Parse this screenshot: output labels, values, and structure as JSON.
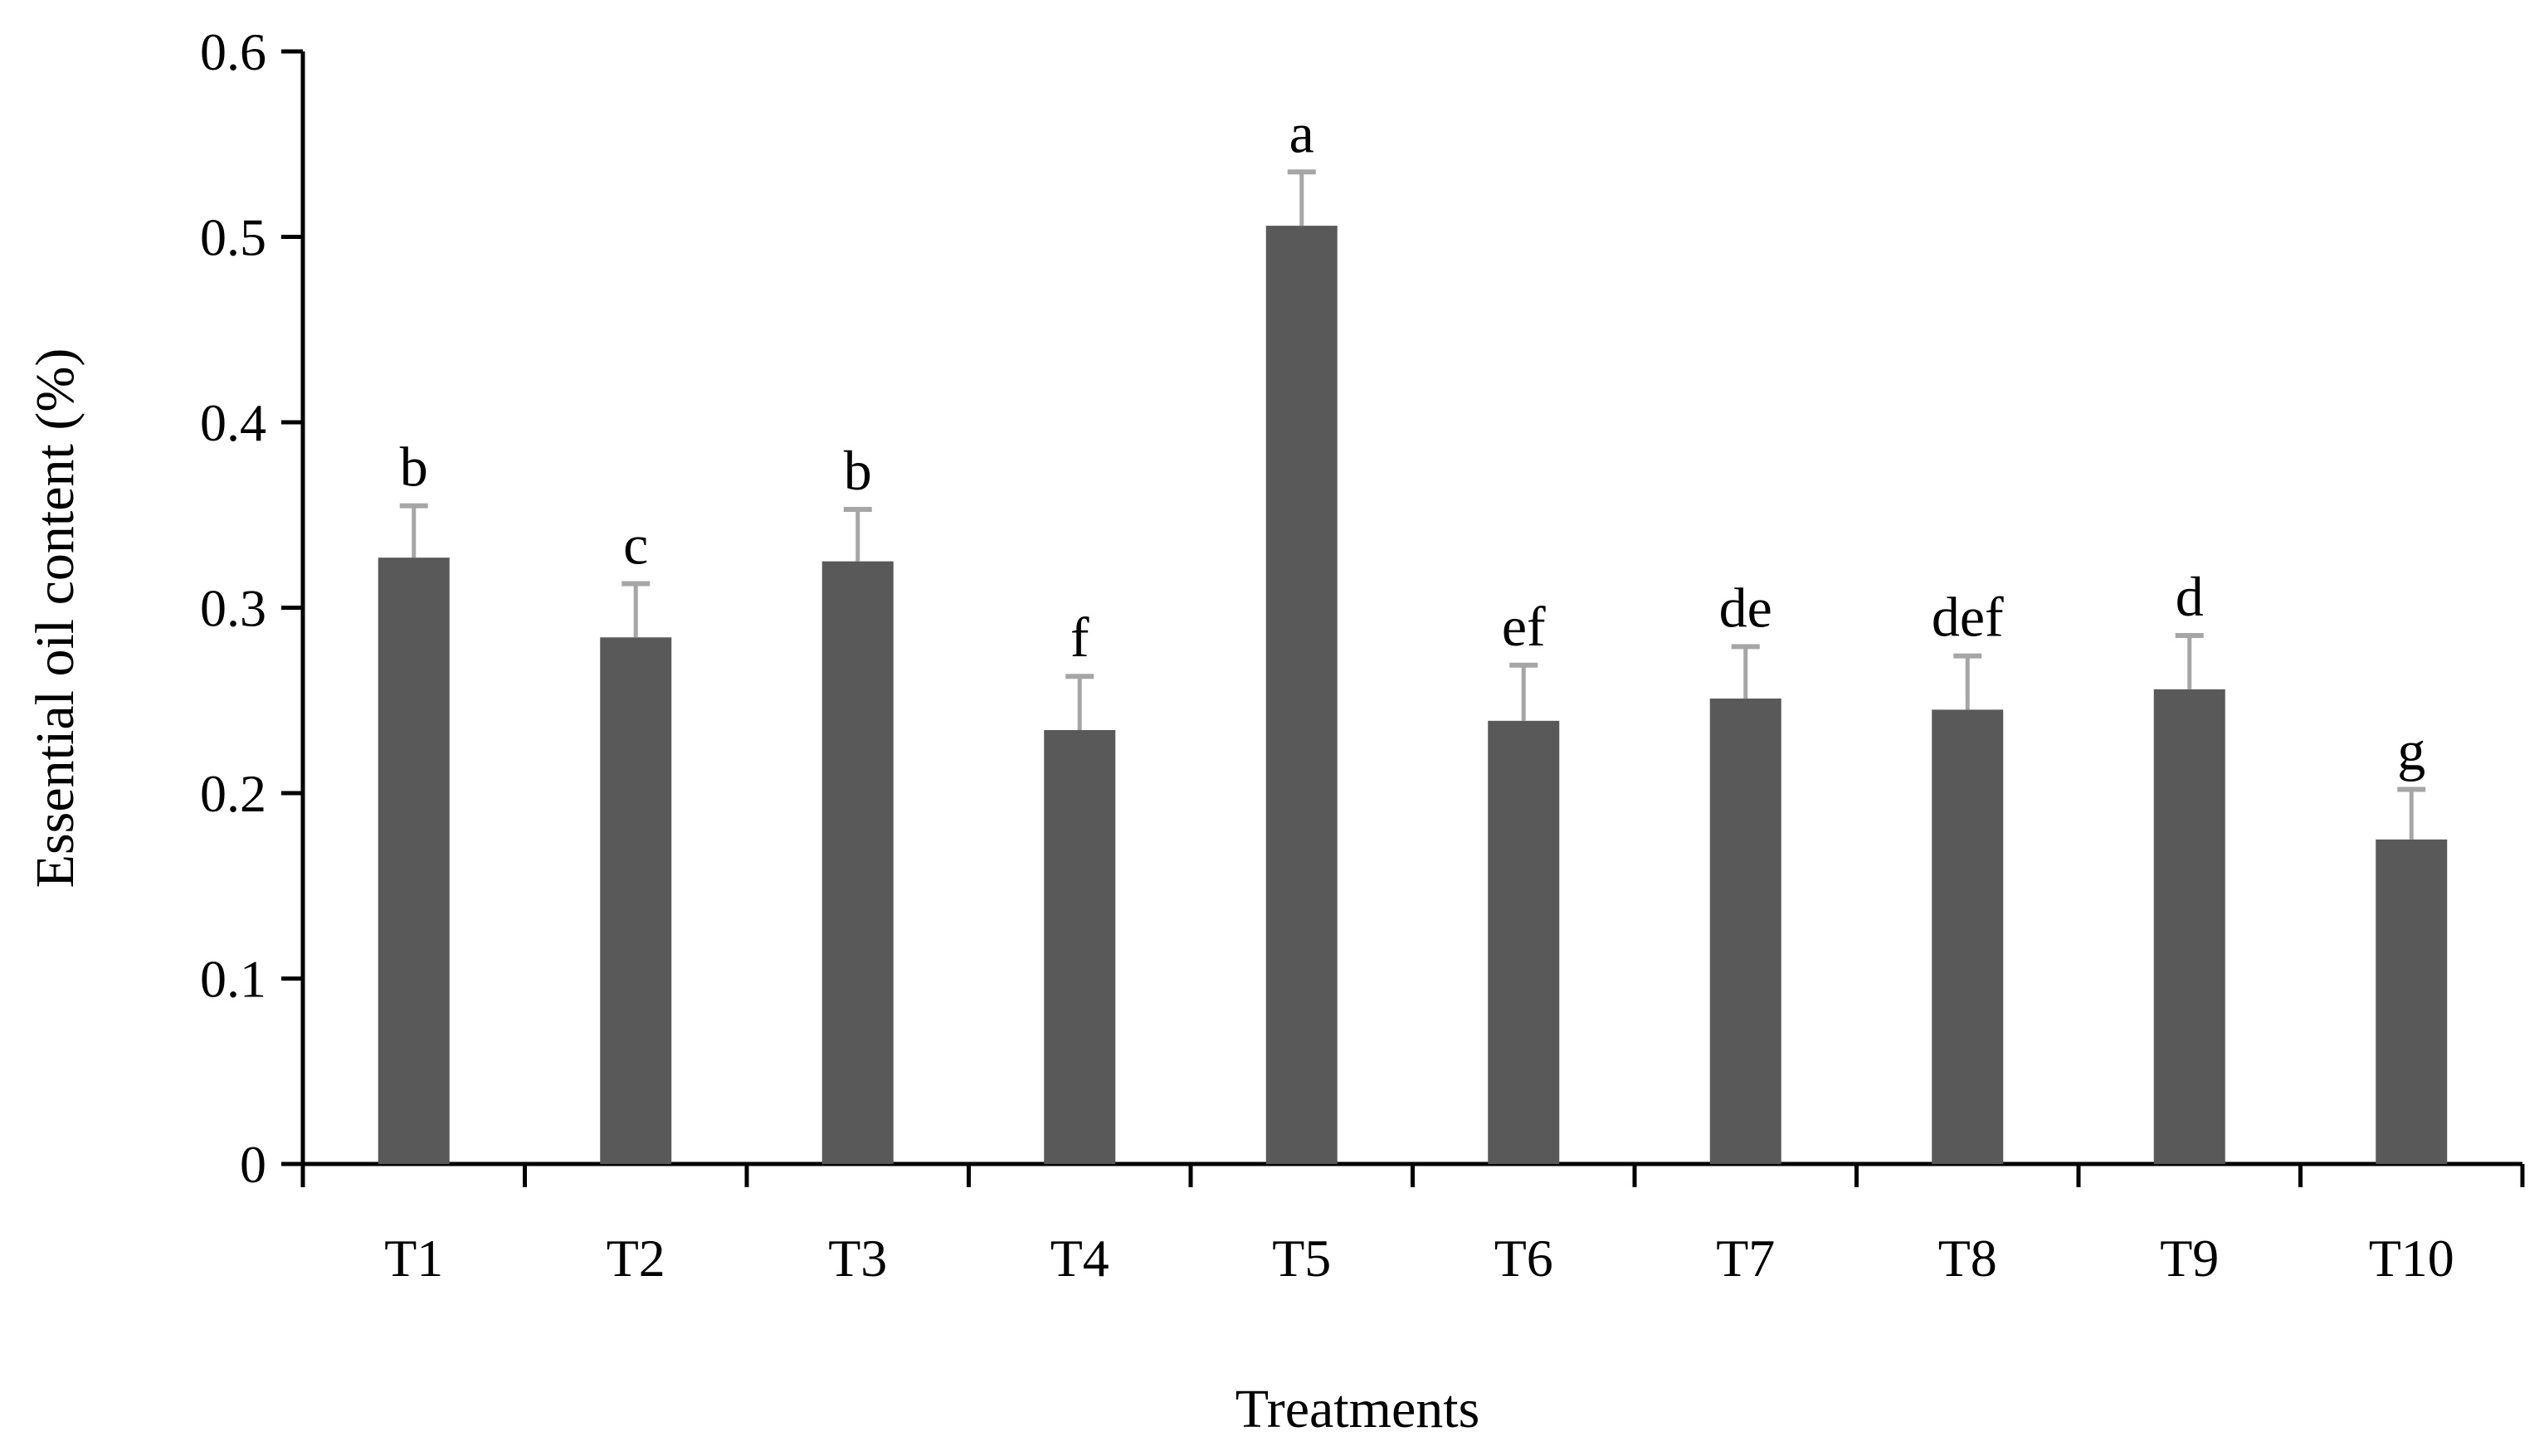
{
  "chart_data": {
    "type": "bar",
    "title": "",
    "xlabel": "Treatments",
    "ylabel": "Essential oil content  (%)",
    "ylim": [
      0,
      0.6
    ],
    "yticks": [
      "0",
      "0.1",
      "0.2",
      "0.3",
      "0.4",
      "0.5",
      "0.6"
    ],
    "grid": false,
    "categories": [
      "T1",
      "T2",
      "T3",
      "T4",
      "T5",
      "T6",
      "T7",
      "T8",
      "T9",
      "T10"
    ],
    "series": [
      {
        "name": "Essential oil content",
        "values": [
          0.327,
          0.284,
          0.325,
          0.234,
          0.506,
          0.239,
          0.251,
          0.245,
          0.256,
          0.175
        ],
        "errors": [
          0.028,
          0.029,
          0.028,
          0.029,
          0.029,
          0.03,
          0.028,
          0.029,
          0.029,
          0.027
        ],
        "significance": [
          "b",
          "c",
          "b",
          "f",
          "a",
          "ef",
          "de",
          "def",
          "d",
          "g"
        ]
      }
    ],
    "colors": {
      "bar": "#595959",
      "error_bar": "#a6a6a6",
      "axis": "#000000"
    }
  }
}
